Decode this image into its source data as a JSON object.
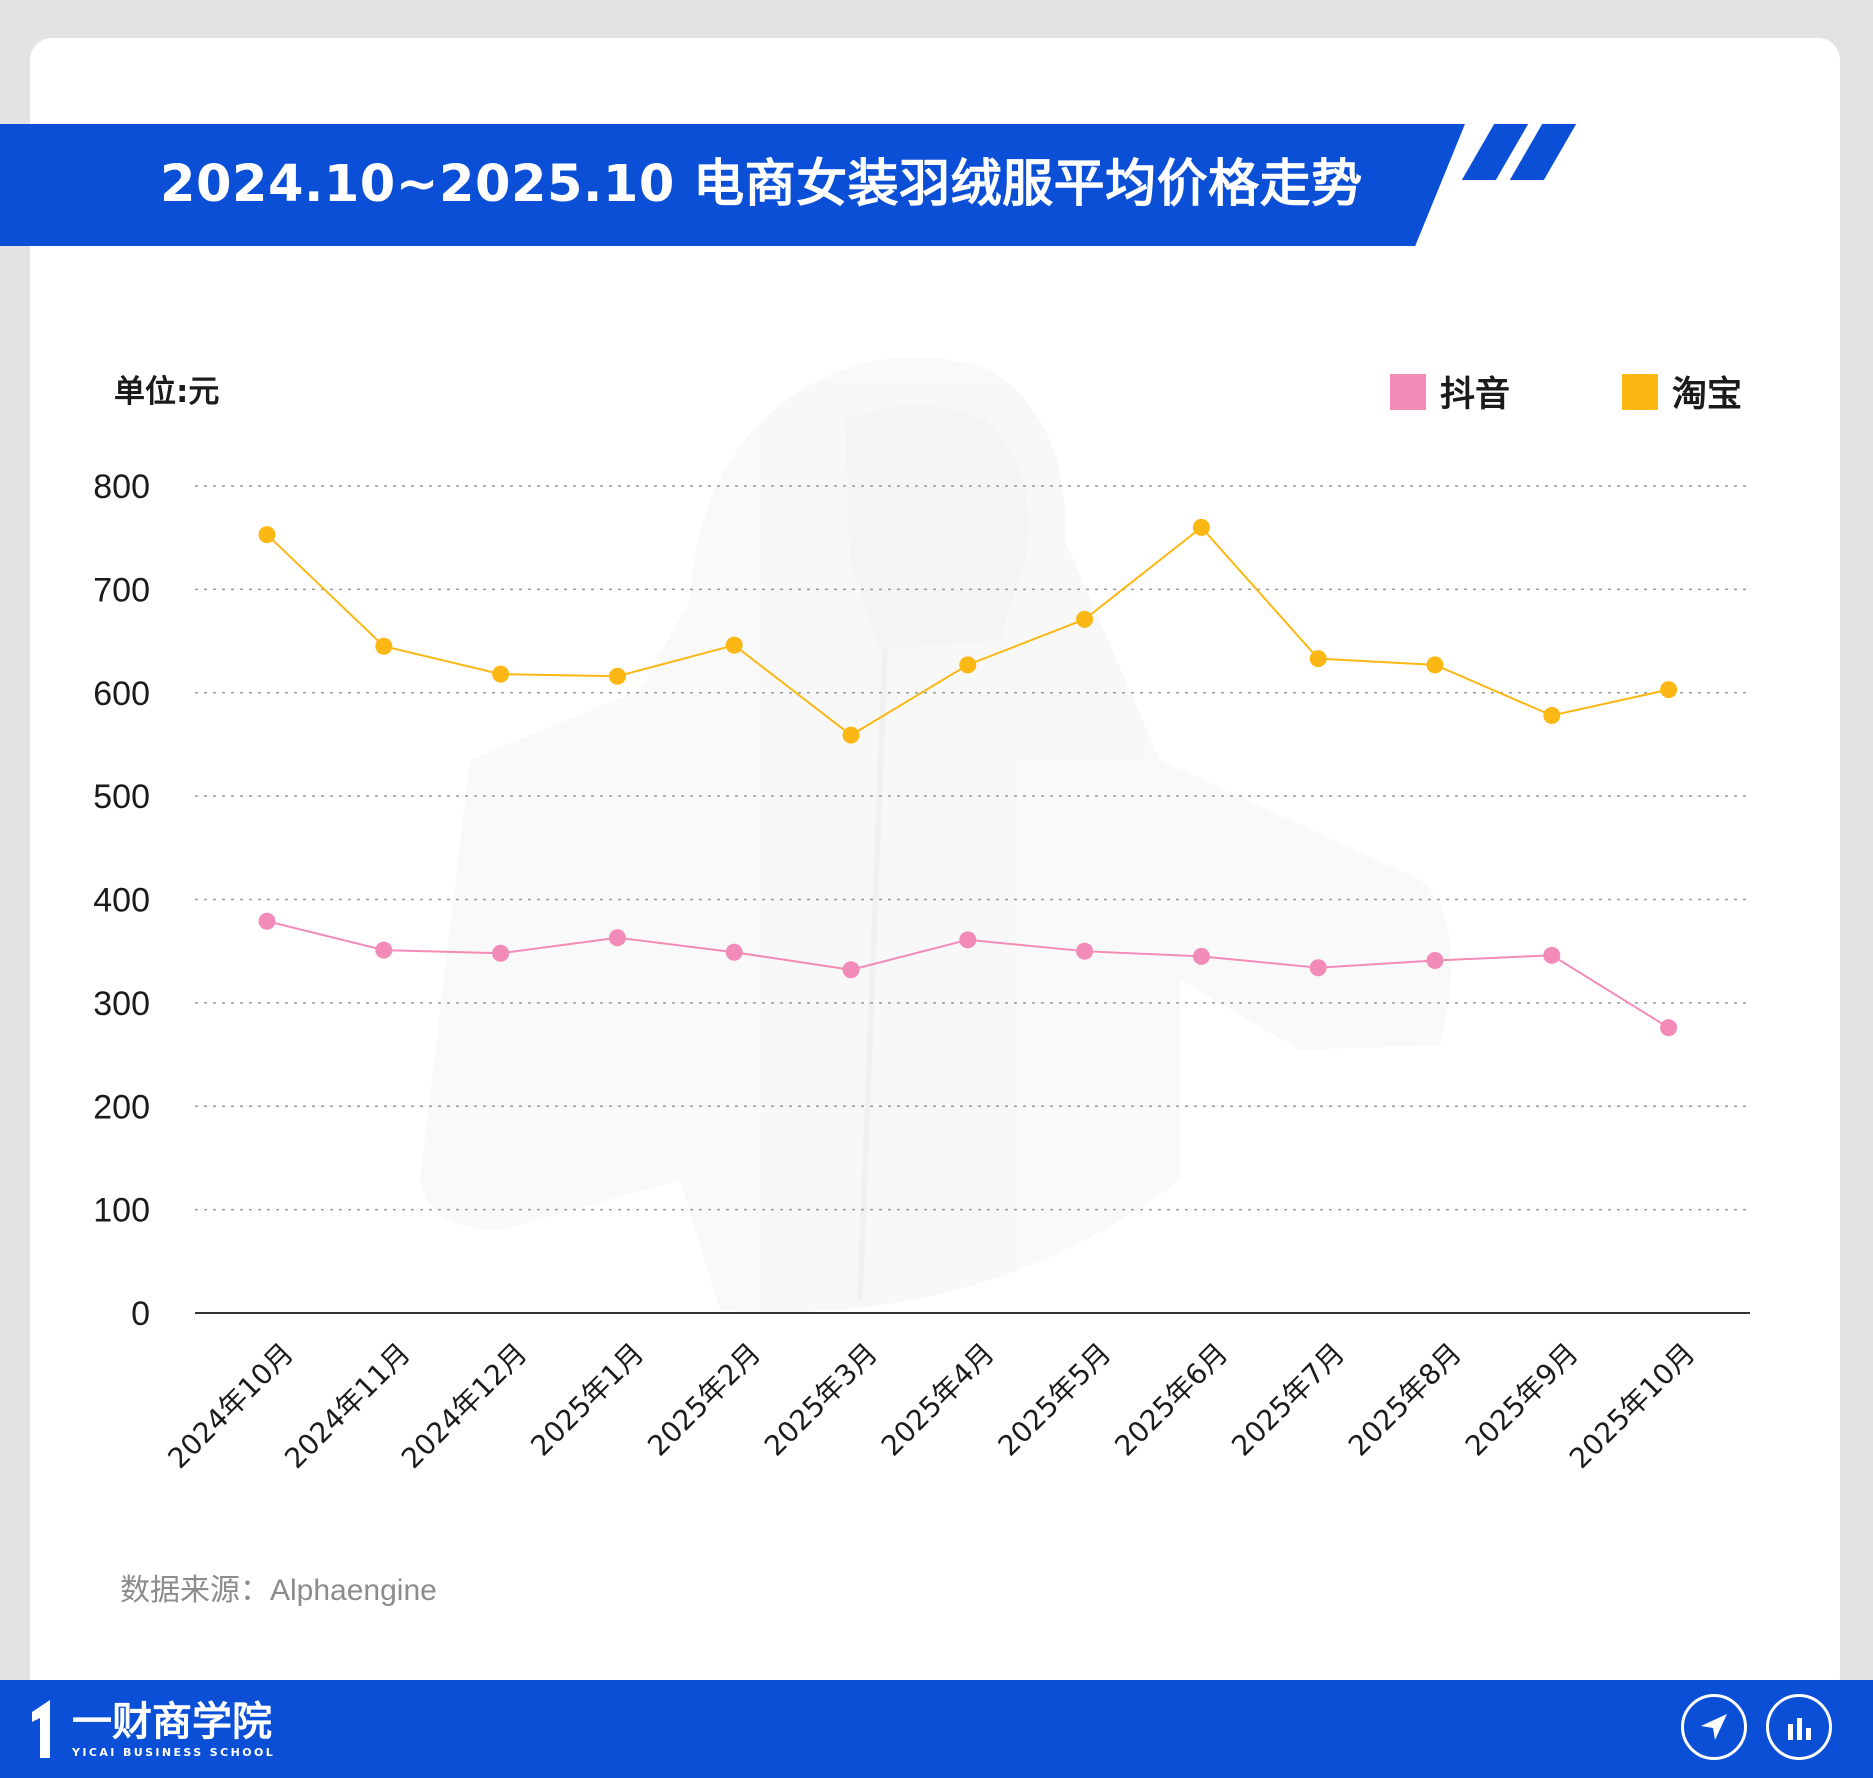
{
  "title": "2024.10~2025.10 电商女装羽绒服平均价格走势",
  "unit_label": "单位:元",
  "source": "数据来源：Alphaengine",
  "brand": {
    "name": "一财商学院",
    "subtitle": "YICAI BUSINESS SCHOOL"
  },
  "footer_icons": [
    "navigation-arrow-icon",
    "bar-chart-icon"
  ],
  "colors": {
    "accent": "#0a4fd6",
    "douyin": "#f28bb8",
    "taobao": "#fbb713",
    "grid": "#9a9a9a"
  },
  "chart_data": {
    "type": "line",
    "title": "2024.10~2025.10 电商女装羽绒服平均价格走势",
    "ylabel": "单位:元",
    "xlabel": "",
    "ylim": [
      0,
      800
    ],
    "yticks": [
      0,
      100,
      200,
      300,
      400,
      500,
      600,
      700,
      800
    ],
    "grid": true,
    "legend_position": "top-right",
    "categories": [
      "2024年10月",
      "2024年11月",
      "2024年12月",
      "2025年1月",
      "2025年2月",
      "2025年3月",
      "2025年4月",
      "2025年5月",
      "2025年6月",
      "2025年7月",
      "2025年8月",
      "2025年9月",
      "2025年10月"
    ],
    "series": [
      {
        "name": "抖音",
        "color": "#f28bb8",
        "values": [
          379,
          351,
          348,
          363,
          349,
          332,
          361,
          350,
          345,
          334,
          341,
          346,
          276
        ]
      },
      {
        "name": "淘宝",
        "color": "#fbb713",
        "values": [
          753,
          645,
          618,
          616,
          646,
          559,
          627,
          671,
          760,
          633,
          627,
          578,
          603
        ]
      }
    ]
  }
}
